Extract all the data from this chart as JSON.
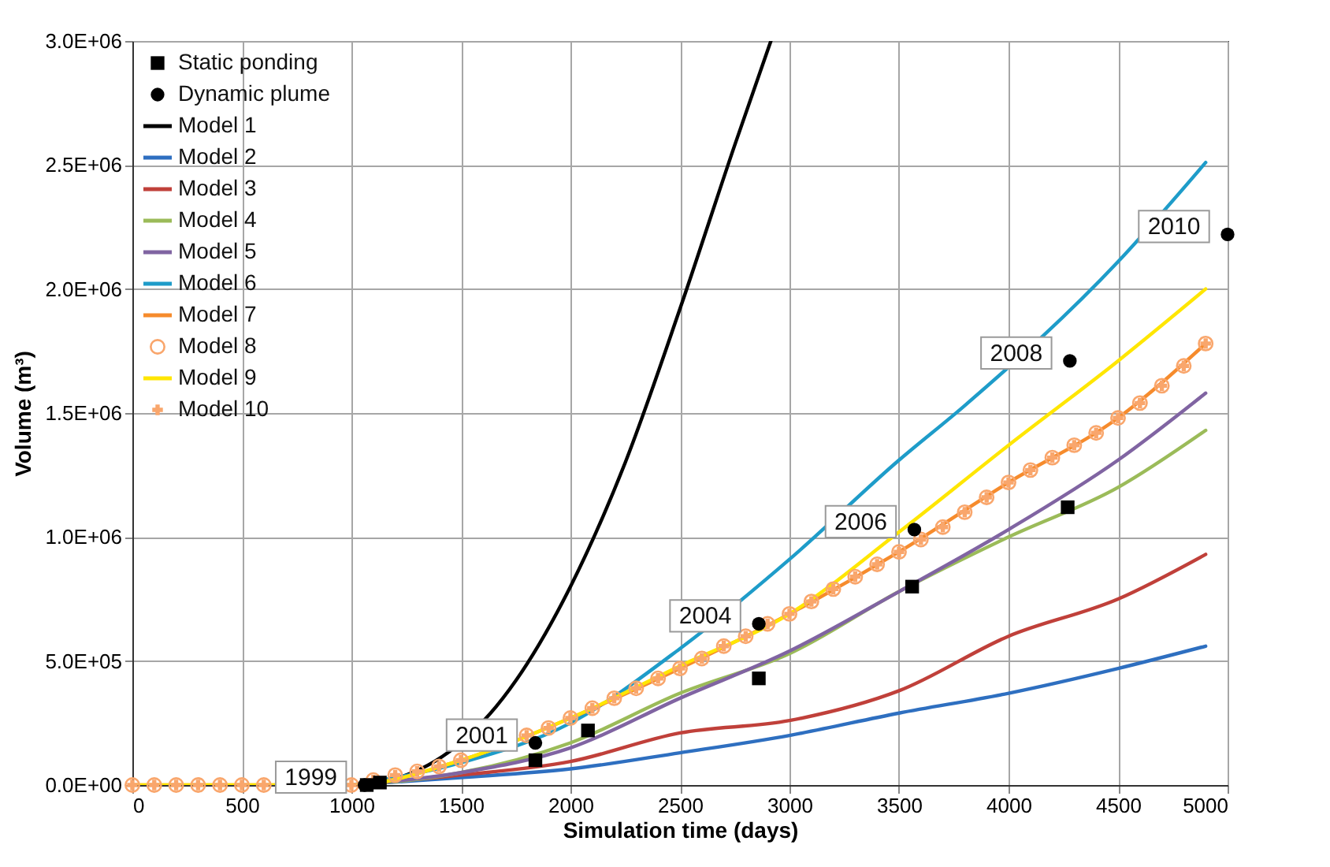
{
  "chart_data": {
    "type": "line",
    "xlabel": "Simulation time (days)",
    "ylabel": "Volume (m³)",
    "xlim": [
      0,
      5000
    ],
    "xticks": [
      0,
      500,
      1000,
      1500,
      2000,
      2500,
      3000,
      3500,
      4000,
      4500,
      5000
    ],
    "ylim": [
      0,
      3000000
    ],
    "yticks": [
      {
        "value": 0,
        "label": "0.0E+00"
      },
      {
        "value": 500000,
        "label": "5.0E+05"
      },
      {
        "value": 1000000,
        "label": "1.0E+06"
      },
      {
        "value": 1500000,
        "label": "1.5E+06"
      },
      {
        "value": 2000000,
        "label": "2.0E+06"
      },
      {
        "value": 2500000,
        "label": "2.5E+06"
      },
      {
        "value": 3000000,
        "label": "3.0E+06"
      }
    ],
    "grid": true,
    "legend": "top left",
    "series": [
      {
        "name": "Static ponding",
        "type": "scatter",
        "marker": "square",
        "color": "#000000",
        "x": [
          1070,
          1130,
          1840,
          2080,
          2860,
          3560,
          4270
        ],
        "values": [
          0,
          10000,
          100000,
          220000,
          430000,
          800000,
          1120000
        ]
      },
      {
        "name": "Dynamic plume",
        "type": "scatter",
        "marker": "circle",
        "color": "#000000",
        "x": [
          1060,
          1840,
          2860,
          3570,
          4280,
          5000
        ],
        "values": [
          0,
          170000,
          650000,
          1030000,
          1710000,
          2220000
        ]
      },
      {
        "name": "Model 1",
        "type": "line",
        "color": "#000000",
        "x": [
          1000,
          1250,
          1750,
          2000,
          2250,
          2500,
          2750,
          2915
        ],
        "values": [
          0,
          40000,
          420000,
          800000,
          1300000,
          1920000,
          2580000,
          3000000
        ]
      },
      {
        "name": "Model 2",
        "type": "line",
        "color": "#2e6fc0",
        "x": [
          1000,
          1500,
          2000,
          2500,
          3000,
          3500,
          4000,
          4500,
          4900
        ],
        "values": [
          0,
          30000,
          65000,
          130000,
          200000,
          290000,
          370000,
          470000,
          560000
        ]
      },
      {
        "name": "Model 3",
        "type": "line",
        "color": "#c0403a",
        "x": [
          1000,
          1500,
          2000,
          2500,
          3000,
          3500,
          4000,
          4500,
          4900
        ],
        "values": [
          0,
          40000,
          95000,
          210000,
          260000,
          380000,
          600000,
          750000,
          930000
        ]
      },
      {
        "name": "Model 4",
        "type": "line",
        "color": "#9bbb59",
        "x": [
          1000,
          1500,
          2000,
          2500,
          3000,
          3500,
          4000,
          4500,
          4900
        ],
        "values": [
          0,
          50000,
          170000,
          370000,
          530000,
          780000,
          1000000,
          1200000,
          1430000
        ]
      },
      {
        "name": "Model 5",
        "type": "line",
        "color": "#8064a2",
        "x": [
          1000,
          1500,
          2000,
          2500,
          3000,
          3500,
          4000,
          4500,
          4900
        ],
        "values": [
          0,
          50000,
          150000,
          350000,
          540000,
          780000,
          1030000,
          1310000,
          1580000
        ]
      },
      {
        "name": "Model 6",
        "type": "line",
        "color": "#1e9cc9",
        "x": [
          1000,
          1500,
          2000,
          2500,
          3000,
          3500,
          3800,
          4500,
          4900
        ],
        "values": [
          0,
          90000,
          250000,
          550000,
          910000,
          1310000,
          1530000,
          2110000,
          2510000
        ]
      },
      {
        "name": "Model 7",
        "type": "line",
        "color": "#f68b2c",
        "x": [
          0,
          1000,
          1500,
          2000,
          2500,
          3000,
          3500,
          4000,
          4500,
          4900
        ],
        "values": [
          0,
          0,
          100000,
          270000,
          470000,
          690000,
          940000,
          1220000,
          1480000,
          1780000
        ]
      },
      {
        "name": "Model 8",
        "type": "scatter",
        "marker": "circle",
        "color": "#f9a66c",
        "x": [
          0,
          100,
          200,
          300,
          400,
          500,
          600,
          700,
          800,
          900,
          1000,
          1100,
          1200,
          1300,
          1400,
          1500,
          1600,
          1700,
          1800,
          1900,
          2000,
          2100,
          2200,
          2300,
          2400,
          2500,
          2600,
          2700,
          2800,
          2900,
          3000,
          3100,
          3200,
          3300,
          3400,
          3500,
          3600,
          3700,
          3800,
          3900,
          4000,
          4100,
          4200,
          4300,
          4400,
          4500,
          4600,
          4700,
          4800,
          4900
        ],
        "values": [
          0,
          0,
          0,
          0,
          0,
          0,
          0,
          null,
          null,
          null,
          0,
          20000,
          40000,
          55000,
          75000,
          100000,
          null,
          null,
          200000,
          230000,
          270000,
          310000,
          350000,
          390000,
          430000,
          470000,
          510000,
          560000,
          600000,
          650000,
          690000,
          740000,
          790000,
          840000,
          890000,
          940000,
          990000,
          1040000,
          1100000,
          1160000,
          1220000,
          1270000,
          1320000,
          1370000,
          1420000,
          1480000,
          1540000,
          1610000,
          1690000,
          1780000
        ]
      },
      {
        "name": "Model 9",
        "type": "line",
        "color": "#ffe600",
        "x": [
          0,
          1000,
          1500,
          2000,
          2500,
          3000,
          3500,
          4000,
          4500,
          4900
        ],
        "values": [
          0,
          0,
          100000,
          270000,
          480000,
          690000,
          1020000,
          1370000,
          1710000,
          2000000
        ]
      },
      {
        "name": "Model 10",
        "type": "scatter",
        "marker": "cross",
        "color": "#f9a66c",
        "x": [
          0,
          100,
          200,
          300,
          400,
          500,
          600,
          700,
          800,
          900,
          1000,
          1100,
          1200,
          1300,
          1400,
          1500,
          1600,
          1700,
          1800,
          1900,
          2000,
          2100,
          2200,
          2300,
          2400,
          2500,
          2600,
          2700,
          2800,
          2900,
          3000,
          3100,
          3200,
          3300,
          3400,
          3500,
          3600,
          3700,
          3800,
          3900,
          4000,
          4100,
          4200,
          4300,
          4400,
          4500,
          4600,
          4700,
          4800,
          4900
        ],
        "values": [
          0,
          0,
          0,
          0,
          0,
          0,
          0,
          null,
          null,
          null,
          0,
          20000,
          40000,
          55000,
          75000,
          100000,
          null,
          null,
          200000,
          230000,
          270000,
          310000,
          350000,
          390000,
          430000,
          470000,
          510000,
          560000,
          600000,
          650000,
          690000,
          740000,
          790000,
          840000,
          890000,
          940000,
          990000,
          1040000,
          1100000,
          1160000,
          1220000,
          1270000,
          1320000,
          1370000,
          1420000,
          1480000,
          1540000,
          1610000,
          1690000,
          1780000
        ]
      }
    ],
    "annotations": [
      {
        "text": "1999",
        "x": 1060,
        "y": 0
      },
      {
        "text": "2001",
        "x": 1840,
        "y": 170000
      },
      {
        "text": "2004",
        "x": 2860,
        "y": 650000
      },
      {
        "text": "2006",
        "x": 3570,
        "y": 1030000
      },
      {
        "text": "2008",
        "x": 4280,
        "y": 1710000
      },
      {
        "text": "2010",
        "x": 5000,
        "y": 2220000
      }
    ]
  }
}
